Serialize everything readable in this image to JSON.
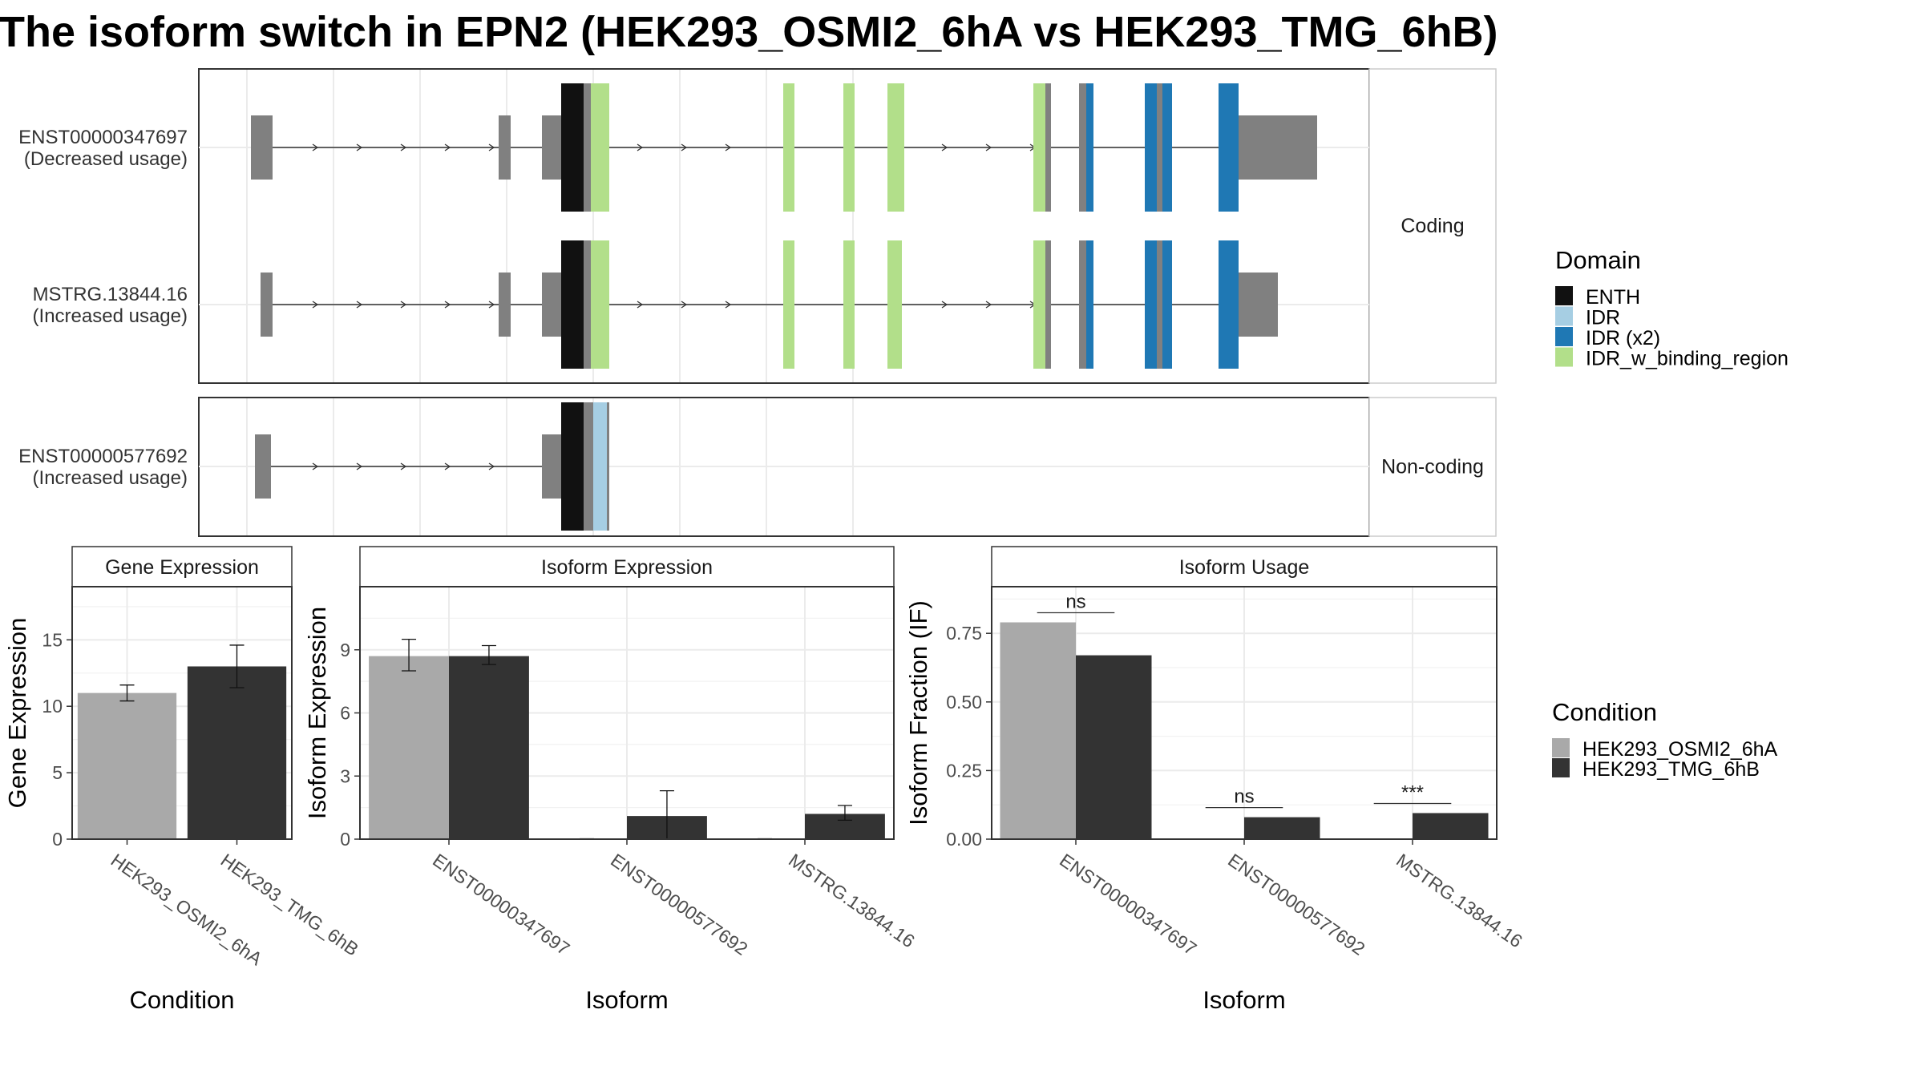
{
  "title": "The isoform switch in EPN2 (HEK293_OSMI2_6hA vs HEK293_TMG_6hB)",
  "structure": {
    "panels": [
      {
        "label": "Coding",
        "isoforms": [
          {
            "name": "ENST00000347697",
            "usage": "(Decreased usage)"
          },
          {
            "name": "MSTRG.13844.16",
            "usage": "(Increased usage)"
          }
        ]
      },
      {
        "label": "Non-coding",
        "isoforms": [
          {
            "name": "ENST00000577692",
            "usage": "(Increased usage)"
          }
        ]
      }
    ]
  },
  "legend_domain": {
    "title": "Domain",
    "items": [
      {
        "label": "ENTH",
        "color": "#111111"
      },
      {
        "label": "IDR",
        "color": "#a6cee3"
      },
      {
        "label": "IDR (x2)",
        "color": "#1f78b4"
      },
      {
        "label": "IDR_w_binding_region",
        "color": "#b2df8a"
      }
    ]
  },
  "legend_condition": {
    "title": "Condition",
    "items": [
      {
        "label": "HEK293_OSMI2_6hA",
        "color": "#a9a9a9"
      },
      {
        "label": "HEK293_TMG_6hB",
        "color": "#333333"
      }
    ]
  },
  "chart_data": [
    {
      "type": "bar",
      "title": "Gene Expression",
      "xlabel": "Condition",
      "ylabel": "Gene Expression",
      "ylim": [
        0,
        19
      ],
      "yticks": [
        0,
        5,
        10,
        15
      ],
      "ytick_labels": [
        "0",
        "5",
        "10",
        "15"
      ],
      "categories": [
        "HEK293_OSMI2_6hA",
        "HEK293_TMG_6hB"
      ],
      "values": [
        11.0,
        13.0
      ],
      "error": [
        [
          10.4,
          11.6
        ],
        [
          11.4,
          14.6
        ]
      ]
    },
    {
      "type": "bar",
      "title": "Isoform Expression",
      "xlabel": "Isoform",
      "ylabel": "Isoform Expression",
      "ylim": [
        0,
        12
      ],
      "yticks": [
        0,
        3,
        6,
        9
      ],
      "ytick_labels": [
        "0",
        "3",
        "6",
        "9"
      ],
      "categories": [
        "ENST00000347697",
        "ENST00000577692",
        "MSTRG.13844.16"
      ],
      "series": [
        {
          "name": "HEK293_OSMI2_6hA",
          "values": [
            8.7,
            0.02,
            0.02
          ],
          "error": [
            [
              8.0,
              9.5
            ],
            null,
            null
          ]
        },
        {
          "name": "HEK293_TMG_6hB",
          "values": [
            8.7,
            1.1,
            1.2
          ],
          "error": [
            [
              8.3,
              9.2
            ],
            [
              0,
              2.3
            ],
            [
              0.9,
              1.6
            ]
          ]
        }
      ]
    },
    {
      "type": "bar",
      "title": "Isoform Usage",
      "xlabel": "Isoform",
      "ylabel": "Isoform Fraction (IF)",
      "ylim": [
        0,
        0.92
      ],
      "yticks": [
        0,
        0.25,
        0.5,
        0.75
      ],
      "ytick_labels": [
        "0.00",
        "0.25",
        "0.50",
        "0.75"
      ],
      "categories": [
        "ENST00000347697",
        "ENST00000577692",
        "MSTRG.13844.16"
      ],
      "series": [
        {
          "name": "HEK293_OSMI2_6hA",
          "values": [
            0.79,
            0,
            0
          ]
        },
        {
          "name": "HEK293_TMG_6hB",
          "values": [
            0.67,
            0.08,
            0.095
          ]
        }
      ],
      "significance": [
        {
          "category": "ENST00000347697",
          "label": "ns"
        },
        {
          "category": "ENST00000577692",
          "label": "ns"
        },
        {
          "category": "MSTRG.13844.16",
          "label": "***"
        }
      ]
    }
  ]
}
